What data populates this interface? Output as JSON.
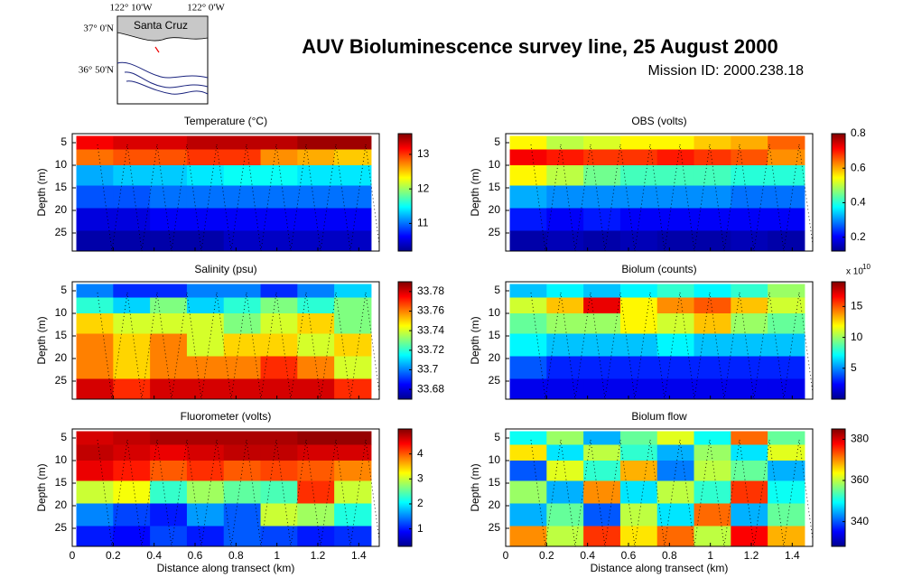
{
  "header": {
    "title": "AUV Bioluminescence survey line, 25 August 2000",
    "subtitle": "Mission ID: 2000.238.18"
  },
  "map": {
    "place": "Santa Cruz",
    "lon_labels": [
      "122° 10'W",
      "122° 0'W"
    ],
    "lat_labels": [
      "37° 0'N",
      "36° 50'N"
    ]
  },
  "chart_data": [
    {
      "type": "heatmap",
      "title": "Temperature (°C)",
      "ylabel": "Depth (m)",
      "xlim": [
        0,
        1.5
      ],
      "ylim": [
        3,
        29
      ],
      "y_reversed": true,
      "xticks": [
        0,
        0.2,
        0.4,
        0.6,
        0.8,
        1,
        1.2,
        1.4
      ],
      "xticklabels": false,
      "yticks": [
        5,
        10,
        15,
        20,
        25
      ],
      "x": [
        0.11,
        0.29,
        0.47,
        0.65,
        0.83,
        1.01,
        1.19,
        1.37
      ],
      "y": [
        5,
        8,
        12,
        17,
        22,
        27
      ],
      "values": [
        [
          13.2,
          13.3,
          13.3,
          13.4,
          13.4,
          13.4,
          13.5,
          13.5
        ],
        [
          12.8,
          12.9,
          12.9,
          13.0,
          13.0,
          12.7,
          12.6,
          12.5
        ],
        [
          11.2,
          11.3,
          11.3,
          11.4,
          11.5,
          11.5,
          11.4,
          11.4
        ],
        [
          10.9,
          10.9,
          11.0,
          11.0,
          11.0,
          11.0,
          11.0,
          11.0
        ],
        [
          10.5,
          10.5,
          10.6,
          10.6,
          10.6,
          10.6,
          10.6,
          10.6
        ],
        [
          10.3,
          10.3,
          10.3,
          10.3,
          10.4,
          10.4,
          10.4,
          10.4
        ]
      ],
      "clim": [
        10.2,
        13.6
      ],
      "cticks": [
        11,
        12,
        13
      ],
      "colormap": "jet"
    },
    {
      "type": "heatmap",
      "title": "OBS (volts)",
      "ylabel": "Depth (m)",
      "xlim": [
        0,
        1.5
      ],
      "ylim": [
        3,
        29
      ],
      "y_reversed": true,
      "xticks": [
        0,
        0.2,
        0.4,
        0.6,
        0.8,
        1,
        1.2,
        1.4
      ],
      "xticklabels": false,
      "yticks": [
        5,
        10,
        15,
        20,
        25
      ],
      "x": [
        0.11,
        0.29,
        0.47,
        0.65,
        0.83,
        1.01,
        1.19,
        1.37
      ],
      "y": [
        5,
        8,
        12,
        17,
        22,
        27
      ],
      "values": [
        [
          0.55,
          0.5,
          0.52,
          0.55,
          0.55,
          0.58,
          0.6,
          0.65
        ],
        [
          0.72,
          0.7,
          0.68,
          0.68,
          0.7,
          0.68,
          0.66,
          0.62
        ],
        [
          0.55,
          0.5,
          0.45,
          0.42,
          0.42,
          0.42,
          0.4,
          0.4
        ],
        [
          0.32,
          0.3,
          0.3,
          0.3,
          0.3,
          0.3,
          0.28,
          0.28
        ],
        [
          0.22,
          0.2,
          0.22,
          0.2,
          0.2,
          0.2,
          0.2,
          0.2
        ],
        [
          0.14,
          0.15,
          0.14,
          0.15,
          0.14,
          0.14,
          0.15,
          0.14
        ]
      ],
      "clim": [
        0.12,
        0.8
      ],
      "cticks": [
        0.2,
        0.4,
        0.6,
        0.8
      ],
      "colormap": "jet"
    },
    {
      "type": "heatmap",
      "title": "Salinity (psu)",
      "ylabel": "Depth (m)",
      "xlim": [
        0,
        1.5
      ],
      "ylim": [
        3,
        29
      ],
      "y_reversed": true,
      "xticks": [
        0,
        0.2,
        0.4,
        0.6,
        0.8,
        1,
        1.2,
        1.4
      ],
      "xticklabels": false,
      "yticks": [
        5,
        10,
        15,
        20,
        25
      ],
      "x": [
        0.11,
        0.29,
        0.47,
        0.65,
        0.83,
        1.01,
        1.19,
        1.37
      ],
      "y": [
        5,
        8,
        12,
        17,
        22,
        27
      ],
      "values": [
        [
          33.7,
          33.69,
          33.69,
          33.7,
          33.7,
          33.69,
          33.7,
          33.71
        ],
        [
          33.72,
          33.71,
          33.73,
          33.71,
          33.72,
          33.73,
          33.72,
          33.73
        ],
        [
          33.75,
          33.74,
          33.74,
          33.74,
          33.73,
          33.74,
          33.75,
          33.73
        ],
        [
          33.76,
          33.75,
          33.76,
          33.74,
          33.75,
          33.75,
          33.74,
          33.75
        ],
        [
          33.76,
          33.75,
          33.76,
          33.76,
          33.76,
          33.77,
          33.76,
          33.74
        ],
        [
          33.78,
          33.77,
          33.78,
          33.78,
          33.78,
          33.78,
          33.78,
          33.77
        ]
      ],
      "clim": [
        33.67,
        33.79
      ],
      "cticks": [
        33.68,
        33.7,
        33.72,
        33.74,
        33.76,
        33.78
      ],
      "colormap": "jet"
    },
    {
      "type": "heatmap",
      "title": "Biolum (counts)",
      "ylabel": "Depth (m)",
      "xlim": [
        0,
        1.5
      ],
      "ylim": [
        3,
        29
      ],
      "y_reversed": true,
      "xticks": [
        0,
        0.2,
        0.4,
        0.6,
        0.8,
        1,
        1.2,
        1.4
      ],
      "xticklabels": false,
      "yticks": [
        5,
        10,
        15,
        20,
        25
      ],
      "x": [
        0.11,
        0.29,
        0.47,
        0.65,
        0.83,
        1.01,
        1.19,
        1.37
      ],
      "y": [
        5,
        8,
        12,
        17,
        22,
        27
      ],
      "values": [
        [
          6,
          7,
          6,
          7,
          8,
          7,
          8,
          10
        ],
        [
          11,
          13,
          17,
          12,
          14,
          15,
          13,
          11
        ],
        [
          9,
          10,
          10,
          12,
          11,
          13,
          10,
          9
        ],
        [
          7,
          6,
          6,
          6,
          7,
          6,
          6,
          6
        ],
        [
          4,
          3,
          3,
          3,
          3,
          3,
          3,
          3
        ],
        [
          2,
          2,
          2,
          2,
          2,
          2,
          2,
          2
        ]
      ],
      "clim": [
        0,
        19
      ],
      "cticks": [
        5,
        10,
        15
      ],
      "colorbar_scale_label": "x 10",
      "colorbar_scale_exponent": 10,
      "colormap": "jet"
    },
    {
      "type": "heatmap",
      "title": "Fluorometer (volts)",
      "ylabel": "Depth (m)",
      "xlabel": "Distance along transect (km)",
      "xlim": [
        0,
        1.5
      ],
      "ylim": [
        3,
        29
      ],
      "y_reversed": true,
      "xticks": [
        0,
        0.2,
        0.4,
        0.6,
        0.8,
        1,
        1.2,
        1.4
      ],
      "xticklabels": true,
      "yticks": [
        5,
        10,
        15,
        20,
        25
      ],
      "x": [
        0.11,
        0.29,
        0.47,
        0.65,
        0.83,
        1.01,
        1.19,
        1.37
      ],
      "y": [
        5,
        8,
        12,
        17,
        22,
        27
      ],
      "values": [
        [
          4.6,
          4.7,
          4.8,
          4.8,
          4.8,
          4.8,
          4.9,
          4.9
        ],
        [
          4.7,
          4.6,
          4.5,
          4.6,
          4.7,
          4.7,
          4.6,
          4.6
        ],
        [
          4.5,
          4.3,
          4.0,
          4.2,
          4.0,
          4.1,
          4.0,
          3.8
        ],
        [
          3.0,
          3.2,
          2.3,
          2.8,
          2.5,
          2.4,
          4.2,
          3.0
        ],
        [
          1.5,
          1.2,
          1.0,
          1.6,
          1.3,
          3.0,
          2.8,
          2.2
        ],
        [
          1.0,
          0.9,
          1.2,
          1.0,
          1.3,
          1.2,
          1.0,
          1.1
        ]
      ],
      "clim": [
        0.3,
        5
      ],
      "cticks": [
        1,
        2,
        3,
        4
      ],
      "colormap": "jet"
    },
    {
      "type": "heatmap",
      "title": "Biolum flow",
      "ylabel": "Depth (m)",
      "xlabel": "Distance along transect (km)",
      "xlim": [
        0,
        1.5
      ],
      "ylim": [
        3,
        29
      ],
      "y_reversed": true,
      "xticks": [
        0,
        0.2,
        0.4,
        0.6,
        0.8,
        1,
        1.2,
        1.4
      ],
      "xticklabels": true,
      "yticks": [
        5,
        10,
        15,
        20,
        25
      ],
      "x": [
        0.11,
        0.29,
        0.47,
        0.65,
        0.83,
        1.01,
        1.19,
        1.37
      ],
      "y": [
        5,
        8,
        12,
        17,
        22,
        27
      ],
      "values": [
        [
          350,
          358,
          345,
          355,
          362,
          350,
          372,
          355
        ],
        [
          365,
          348,
          360,
          352,
          345,
          358,
          348,
          362
        ],
        [
          340,
          362,
          352,
          368,
          342,
          360,
          355,
          345
        ],
        [
          358,
          345,
          370,
          348,
          360,
          352,
          375,
          350
        ],
        [
          345,
          355,
          340,
          360,
          348,
          372,
          345,
          355
        ],
        [
          370,
          360,
          375,
          365,
          372,
          360,
          378,
          368
        ]
      ],
      "clim": [
        328,
        385
      ],
      "cticks": [
        340,
        360,
        380
      ],
      "colormap": "jet"
    }
  ]
}
